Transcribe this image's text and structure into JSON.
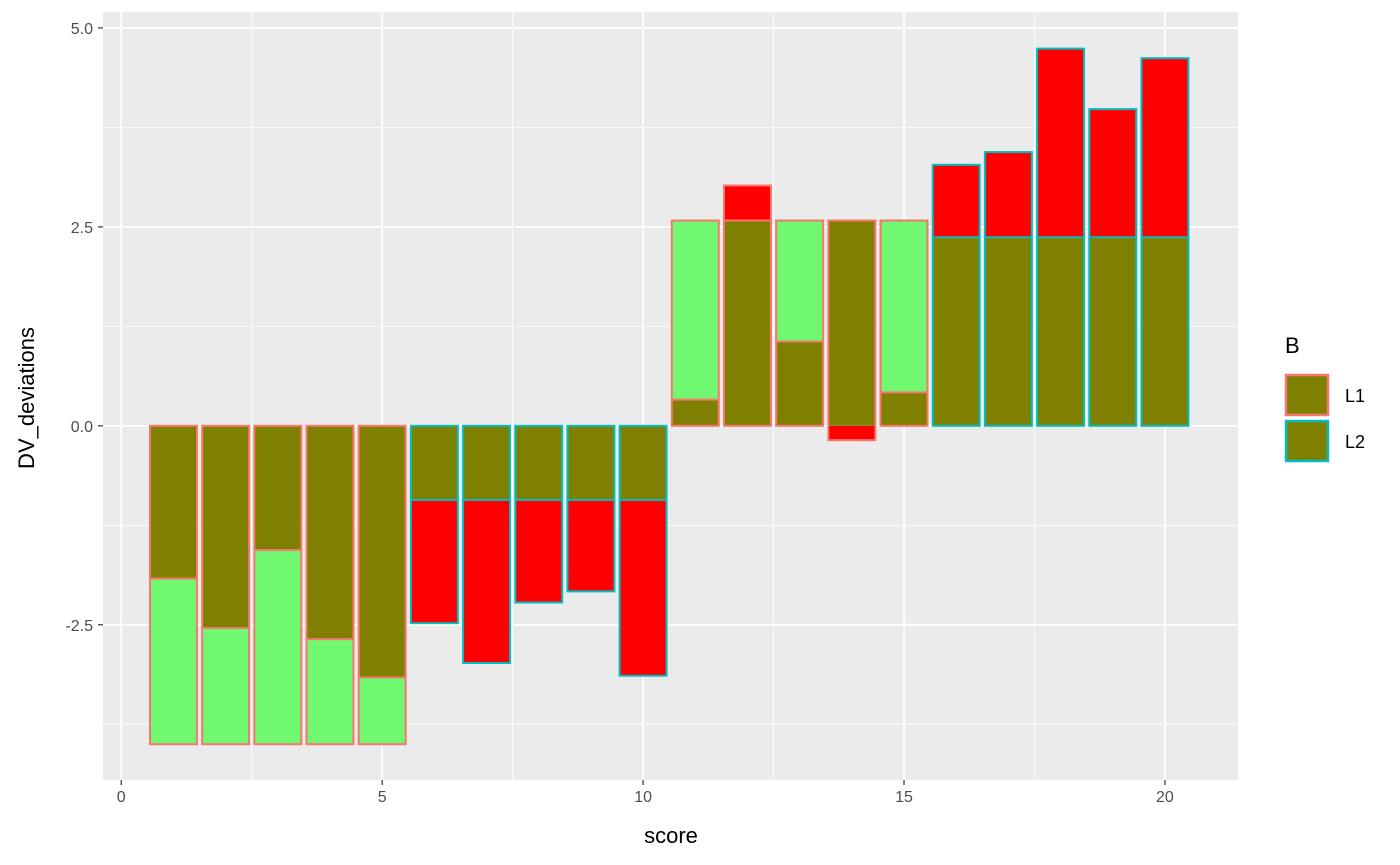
{
  "chart_data": {
    "type": "bar",
    "title": "",
    "xlabel": "score",
    "ylabel": "DV_deviations",
    "xlim": [
      -0.35,
      21.4
    ],
    "ylim": [
      -4.45,
      5.2
    ],
    "x_ticks": [
      0,
      5,
      10,
      15,
      20
    ],
    "x_tick_labels": [
      "0",
      "5",
      "10",
      "15",
      "20"
    ],
    "y_ticks": [
      -2.5,
      0.0,
      2.5,
      5.0
    ],
    "y_tick_labels": [
      "-2.5",
      "0.0",
      "2.5",
      "5.0"
    ],
    "grid": true,
    "legend": {
      "title": "B",
      "position": "right",
      "entries": [
        {
          "label": "L1",
          "fill": "#808000",
          "outline": "#F8766D"
        },
        {
          "label": "L2",
          "fill": "#808000",
          "outline": "#00BFC4"
        }
      ]
    },
    "colors": {
      "panel_bg": "#EBEBEB",
      "grid_major": "#FFFFFF",
      "overlay_fill": "#808000",
      "positive_fill": "#70F870",
      "negative_fill": "#FF0000",
      "L1_outline": "#F8766D",
      "L2_outline": "#00BFC4"
    },
    "bar_width": 0.9,
    "series": [
      {
        "name": "deviation",
        "description_value": "bar total",
        "values": [
          -4.0,
          -4.0,
          -4.0,
          -4.0,
          -4.0,
          -2.48,
          -2.98,
          -2.22,
          -2.08,
          -3.14,
          2.58,
          3.02,
          2.58,
          -0.18,
          2.58,
          3.28,
          3.44,
          4.74,
          3.98,
          4.62
        ]
      },
      {
        "name": "overlay",
        "values": [
          -1.92,
          -2.54,
          -1.56,
          -2.68,
          -3.16,
          -0.93,
          -0.93,
          -0.93,
          -0.93,
          -0.93,
          0.33,
          2.58,
          1.06,
          2.58,
          0.42,
          2.37,
          2.37,
          2.37,
          2.37,
          2.37
        ]
      }
    ],
    "x": [
      1,
      2,
      3,
      4,
      5,
      6,
      7,
      8,
      9,
      10,
      11,
      12,
      13,
      14,
      15,
      16,
      17,
      18,
      19,
      20
    ],
    "group": [
      "L1",
      "L1",
      "L1",
      "L1",
      "L1",
      "L2",
      "L2",
      "L2",
      "L2",
      "L2",
      "L1",
      "L1",
      "L1",
      "L1",
      "L1",
      "L2",
      "L2",
      "L2",
      "L2",
      "L2"
    ],
    "fill_type": [
      "positive",
      "positive",
      "positive",
      "positive",
      "positive",
      "negative",
      "negative",
      "negative",
      "negative",
      "negative",
      "positive",
      "negative",
      "positive",
      "negative",
      "positive",
      "negative",
      "negative",
      "negative",
      "negative",
      "negative"
    ]
  }
}
